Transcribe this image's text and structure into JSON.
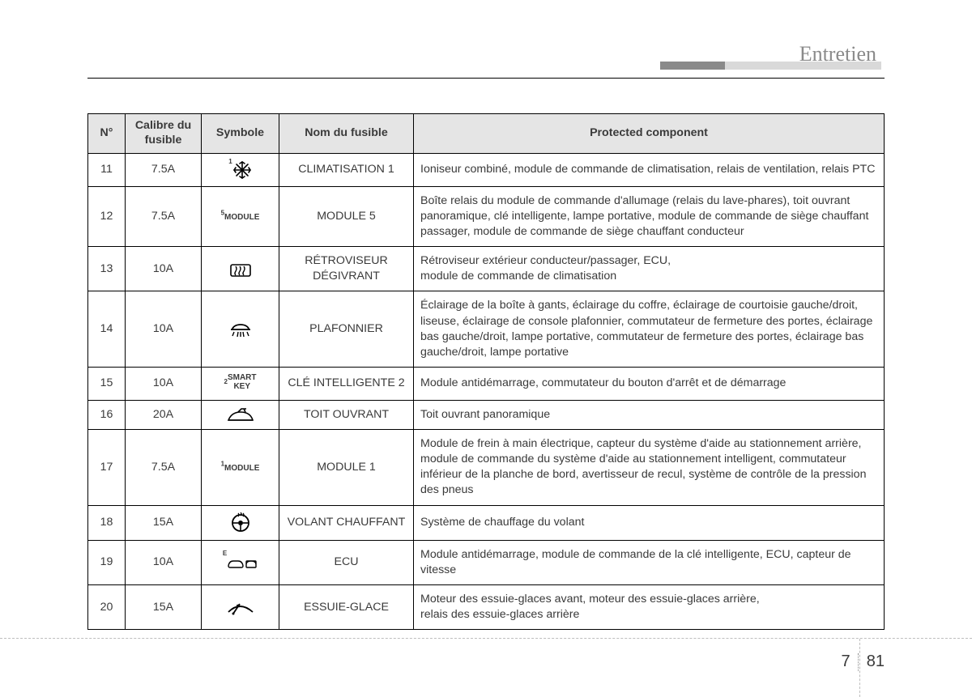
{
  "page": {
    "title": "Entretien",
    "chapter": "7",
    "pageNumber": "81"
  },
  "table": {
    "headers": {
      "num": "N°",
      "calibre": "Calibre du fusible",
      "symbole": "Symbole",
      "nom": "Nom du fusible",
      "protected": "Protected component"
    },
    "rows": [
      {
        "num": "11",
        "cal": "7.5A",
        "symType": "snowflake",
        "symSup": "1",
        "nom": "CLIMATISATION  1",
        "desc": "Ioniseur combiné, module de commande de climatisation, relais de ventilation, relais PTC"
      },
      {
        "num": "12",
        "cal": "7.5A",
        "symType": "text",
        "symSup": "5",
        "symText": "MODULE",
        "nom": "MODULE  5",
        "desc": "Boîte relais du module de commande d'allumage (relais du lave-phares), toit ouvrant panoramique, clé intelligente, lampe portative, module de commande de siège chauffant passager, module de commande de siège chauffant conducteur"
      },
      {
        "num": "13",
        "cal": "10A",
        "symType": "defrost",
        "nom": "RÉTROVISEUR DÉGIVRANT",
        "desc": "Rétroviseur extérieur conducteur/passager, ECU,\nmodule de commande de climatisation"
      },
      {
        "num": "14",
        "cal": "10A",
        "symType": "domelight",
        "nom": "PLAFONNIER",
        "desc": "Éclairage de la boîte à gants, éclairage du coffre, éclairage de courtoisie gauche/droit, liseuse, éclairage de console plafonnier, commutateur de fermeture des portes, éclairage bas gauche/droit, lampe portative, commutateur de fermeture des portes, éclairage bas gauche/droit, lampe portative"
      },
      {
        "num": "15",
        "cal": "10A",
        "symType": "text2",
        "symSup": "2",
        "symText": "SMART\nKEY",
        "nom": "CLÉ INTELLIGENTE  2",
        "desc": "Module antidémarrage, commutateur du bouton d'arrêt et de démarrage"
      },
      {
        "num": "16",
        "cal": "20A",
        "symType": "sunroof",
        "nom": "TOIT OUVRANT",
        "desc": "Toit ouvrant panoramique"
      },
      {
        "num": "17",
        "cal": "7.5A",
        "symType": "text",
        "symSup": "1",
        "symText": "MODULE",
        "nom": "MODULE  1",
        "desc": "Module de frein à main électrique, capteur du système d'aide au stationnement arrière, module de commande du système d'aide au stationnement intelligent, commutateur inférieur de la planche de bord, avertisseur de recul, système de contrôle de la pression des pneus"
      },
      {
        "num": "18",
        "cal": "15A",
        "symType": "heatedwheel",
        "nom": "VOLANT CHAUFFANT",
        "desc": "Système de chauffage du volant"
      },
      {
        "num": "19",
        "cal": "10A",
        "symType": "ecu",
        "symSup": "E",
        "nom": "ECU",
        "desc": "Module antidémarrage, module de commande de la clé intelligente, ECU, capteur de vitesse"
      },
      {
        "num": "20",
        "cal": "15A",
        "symType": "wiper",
        "nom": "ESSUIE-GLACE",
        "desc": "Moteur des essuie-glaces avant, moteur des essuie-glaces arrière,\nrelais des essuie-glaces arrière"
      }
    ]
  }
}
